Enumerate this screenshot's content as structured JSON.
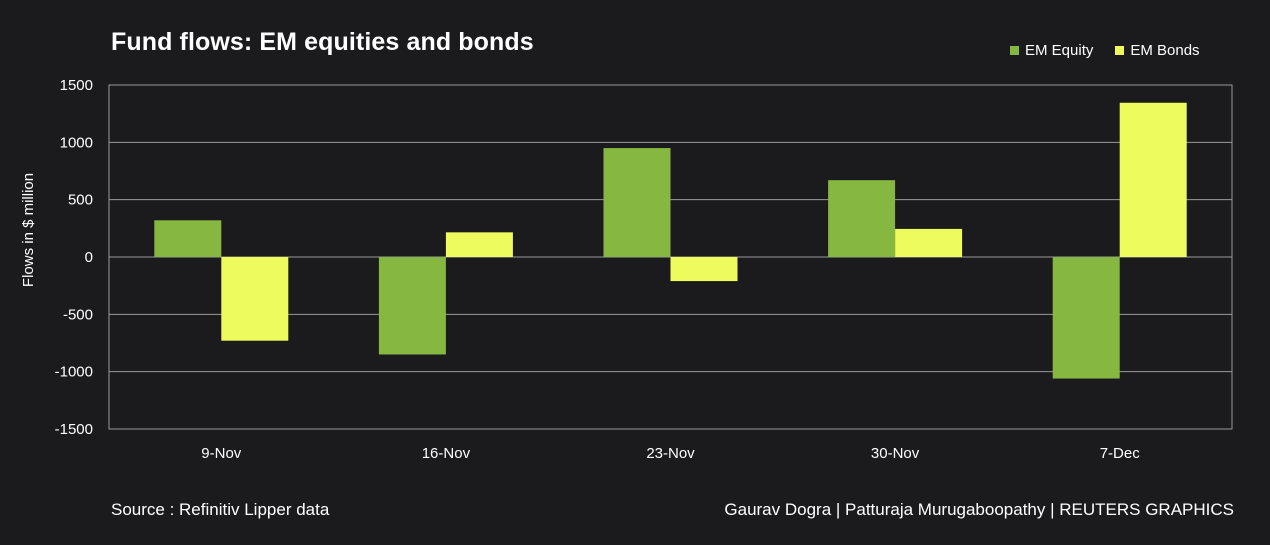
{
  "title": "Fund flows: EM equities and bonds",
  "source": "Source : Refinitiv Lipper data",
  "credit": "Gaurav Dogra | Patturaja Murugaboopathy | REUTERS GRAPHICS",
  "colors": {
    "background": "#1b1b1d",
    "equity": "#86b841",
    "bonds": "#eefb5c",
    "grid": "#9a9a9a"
  },
  "chart_data": {
    "type": "bar",
    "title": "Fund flows: EM equities and bonds",
    "xlabel": "",
    "ylabel": "Flows in $ million",
    "categories": [
      "9-Nov",
      "16-Nov",
      "23-Nov",
      "30-Nov",
      "7-Dec"
    ],
    "series": [
      {
        "name": "EM Equity",
        "values": [
          320,
          -850,
          950,
          670,
          -1060
        ]
      },
      {
        "name": "EM Bonds",
        "values": [
          -730,
          215,
          -210,
          245,
          1345
        ]
      }
    ],
    "ylim": [
      -1500,
      1500
    ],
    "yticks": [
      1500,
      1000,
      500,
      0,
      -500,
      -1000,
      -1500
    ],
    "grid": true,
    "legend": "top-right"
  }
}
